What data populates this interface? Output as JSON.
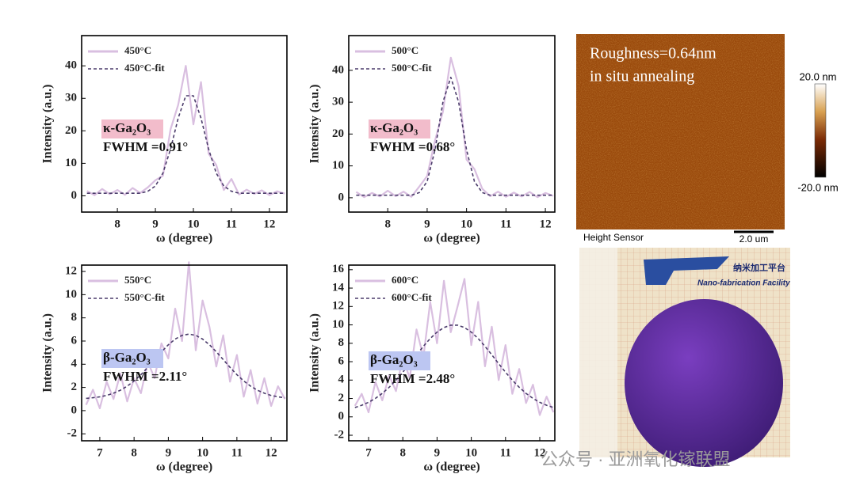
{
  "chart_data": [
    {
      "type": "line",
      "xlabel": "ω (degree)",
      "ylabel": "Intensity (a.u.)",
      "xlim": [
        7.06,
        12.46
      ],
      "ylim": [
        -5,
        49.3
      ],
      "xticks": [
        8,
        9,
        10,
        11,
        12
      ],
      "yticks": [
        0,
        10,
        20,
        30,
        40
      ],
      "annotation": "κ-Ga₂O₃",
      "annotation_color": "#f2bccb",
      "fwhm": "FWHM =0.91°",
      "x": [
        7.2,
        7.4,
        7.6,
        7.8,
        8.0,
        8.2,
        8.4,
        8.6,
        8.8,
        9.0,
        9.2,
        9.4,
        9.6,
        9.8,
        10.0,
        10.2,
        10.4,
        10.6,
        10.8,
        11.0,
        11.2,
        11.4,
        11.6,
        11.8,
        12.0,
        12.2,
        12.4
      ],
      "series": [
        {
          "name": "450°C",
          "color": "#d9bfe0",
          "style": "solid",
          "values": [
            1.5,
            0.2,
            2.1,
            0.5,
            1.8,
            0.3,
            2.4,
            0.9,
            2.6,
            4.8,
            6.2,
            20.5,
            28,
            40,
            22,
            35,
            13,
            9.5,
            1.8,
            5.2,
            0.4,
            1.9,
            0.6,
            1.7,
            0.2,
            1.4,
            0.7
          ]
        },
        {
          "name": "450°C-fit",
          "color": "#4b3c6b",
          "style": "dashed",
          "values": [
            0.8,
            0.8,
            0.8,
            0.8,
            0.8,
            0.8,
            0.8,
            0.8,
            1.4,
            3.0,
            7.0,
            14.4,
            23.9,
            30.8,
            30.8,
            23.9,
            14.4,
            7.0,
            3.0,
            1.4,
            0.8,
            0.8,
            0.8,
            0.8,
            0.8,
            0.8,
            0.8
          ]
        }
      ]
    },
    {
      "type": "line",
      "xlabel": "ω (degree)",
      "ylabel": "Intensity (a.u.)",
      "xlim": [
        7.01,
        12.24
      ],
      "ylim": [
        -4.5,
        50.9
      ],
      "xticks": [
        8,
        9,
        10,
        11,
        12
      ],
      "yticks": [
        0,
        10,
        20,
        30,
        40
      ],
      "annotation": "κ-Ga₂O₃",
      "annotation_color": "#f2bccb",
      "fwhm": "FWHM =0.68°",
      "x": [
        7.2,
        7.4,
        7.6,
        7.8,
        8.0,
        8.2,
        8.4,
        8.6,
        8.8,
        9.0,
        9.2,
        9.4,
        9.6,
        9.8,
        10.0,
        10.2,
        10.4,
        10.6,
        10.8,
        11.0,
        11.2,
        11.4,
        11.6,
        11.8,
        12.0,
        12.2
      ],
      "series": [
        {
          "name": "500°C",
          "color": "#d9bfe0",
          "style": "solid",
          "values": [
            1.8,
            0.2,
            1.5,
            0.4,
            2.2,
            0.5,
            1.9,
            0.3,
            3.5,
            6.8,
            18,
            27,
            44,
            35,
            12,
            9,
            2.8,
            0.5,
            1.9,
            0.3,
            1.6,
            0.4,
            1.8,
            0.2,
            1.5,
            0.6
          ]
        },
        {
          "name": "500°C-fit",
          "color": "#4b3c6b",
          "style": "dashed",
          "values": [
            0.8,
            0.8,
            0.8,
            0.8,
            0.8,
            0.8,
            0.8,
            0.8,
            1.6,
            5.1,
            15.1,
            30.0,
            37.8,
            30.0,
            15.1,
            5.1,
            1.6,
            0.8,
            0.8,
            0.8,
            0.8,
            0.8,
            0.8,
            0.8,
            0.8,
            0.8
          ]
        }
      ]
    },
    {
      "type": "line",
      "xlabel": "ω (degree)",
      "ylabel": "Intensity (a.u.)",
      "xlim": [
        6.47,
        12.46
      ],
      "ylim": [
        -2.6,
        12.55
      ],
      "xticks": [
        7,
        8,
        9,
        10,
        11,
        12
      ],
      "yticks": [
        -2,
        0,
        2,
        4,
        6,
        8,
        10,
        12
      ],
      "annotation": "β-Ga₂O₃",
      "annotation_color": "#bcc6f2",
      "fwhm": "FWHM =2.11°",
      "x": [
        6.6,
        6.8,
        7.0,
        7.2,
        7.4,
        7.6,
        7.8,
        8.0,
        8.2,
        8.4,
        8.6,
        8.8,
        9.0,
        9.2,
        9.4,
        9.6,
        9.8,
        10.0,
        10.2,
        10.4,
        10.6,
        10.8,
        11.0,
        11.2,
        11.4,
        11.6,
        11.8,
        12.0,
        12.2,
        12.4
      ],
      "series": [
        {
          "name": "550°C",
          "color": "#d9bfe0",
          "style": "solid",
          "values": [
            0.5,
            1.8,
            0.2,
            2.5,
            1.0,
            3.2,
            0.8,
            2.8,
            1.5,
            4.2,
            2.8,
            5.8,
            4.5,
            8.8,
            6.0,
            12.8,
            5.2,
            9.5,
            7.2,
            3.8,
            6.5,
            2.5,
            4.8,
            1.2,
            3.5,
            0.6,
            2.8,
            0.4,
            2.1,
            1.0
          ]
        },
        {
          "name": "550°C-fit",
          "color": "#4b3c6b",
          "style": "dashed",
          "values": [
            1.06,
            1.11,
            1.19,
            1.31,
            1.5,
            1.76,
            2.11,
            2.56,
            3.1,
            3.73,
            4.4,
            5.07,
            5.68,
            6.17,
            6.49,
            6.6,
            6.49,
            6.17,
            5.68,
            5.07,
            4.4,
            3.73,
            3.1,
            2.56,
            2.11,
            1.76,
            1.5,
            1.31,
            1.19,
            1.11
          ]
        }
      ]
    },
    {
      "type": "line",
      "xlabel": "ω (degree)",
      "ylabel": "Intensity (a.u.)",
      "xlim": [
        6.42,
        12.44
      ],
      "ylim": [
        -2.6,
        16.5
      ],
      "xticks": [
        7,
        8,
        9,
        10,
        11,
        12
      ],
      "yticks": [
        -2,
        0,
        2,
        4,
        6,
        8,
        10,
        12,
        14,
        16
      ],
      "annotation": "β-Ga₂O₃",
      "annotation_color": "#bcc6f2",
      "fwhm": "FWHM =2.48°",
      "x": [
        6.6,
        6.8,
        7.0,
        7.2,
        7.4,
        7.6,
        7.8,
        8.0,
        8.2,
        8.4,
        8.6,
        8.8,
        9.0,
        9.2,
        9.4,
        9.6,
        9.8,
        10.0,
        10.2,
        10.4,
        10.6,
        10.8,
        11.0,
        11.2,
        11.4,
        11.6,
        11.8,
        12.0,
        12.2,
        12.4
      ],
      "series": [
        {
          "name": "600°C",
          "color": "#d9bfe0",
          "style": "solid",
          "values": [
            1.2,
            2.5,
            0.5,
            3.8,
            1.8,
            4.5,
            2.8,
            6.5,
            4.2,
            9.5,
            6.5,
            12.5,
            8.0,
            14.8,
            9.2,
            12.0,
            15.0,
            7.8,
            12.5,
            5.5,
            9.8,
            4.0,
            7.8,
            2.5,
            5.2,
            1.5,
            3.5,
            0.2,
            2.2,
            0.5
          ]
        },
        {
          "name": "600°C-fit",
          "color": "#4b3c6b",
          "style": "dashed",
          "values": [
            1.01,
            1.26,
            1.58,
            2.01,
            2.55,
            3.22,
            3.99,
            4.85,
            5.78,
            6.74,
            7.67,
            8.52,
            9.21,
            9.71,
            9.97,
            9.97,
            9.71,
            9.21,
            8.52,
            7.67,
            6.74,
            5.78,
            4.85,
            3.99,
            3.22,
            2.55,
            2.01,
            1.58,
            1.26,
            1.01
          ]
        }
      ]
    }
  ],
  "afm": {
    "roughness": "Roughness=0.64nm",
    "note": "in situ annealing",
    "scale_max": "20.0 nm",
    "scale_min": "-20.0 nm",
    "channel": "Height Sensor",
    "scale_bar": "2.0 um"
  },
  "wafer": {
    "logo_cn": "纳米加工平台",
    "logo_en": "Nano-fabrication Facility"
  },
  "watermark": "公众号 · 亚洲氧化镓联盟"
}
